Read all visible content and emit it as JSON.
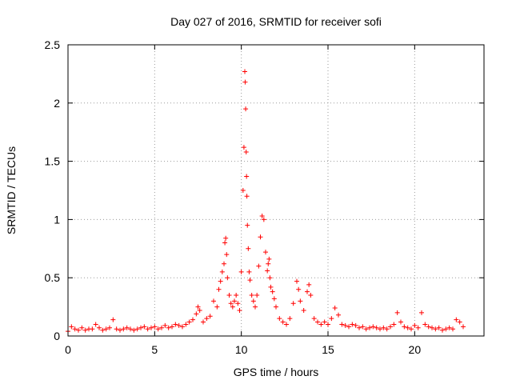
{
  "chart_data": {
    "type": "scatter",
    "title": "Day 027 of 2016, SRMTID for receiver sofi",
    "xlabel": "GPS time / hours",
    "ylabel": "SRMTID / TECUs",
    "xlim": [
      0,
      24
    ],
    "ylim": [
      0,
      2.5
    ],
    "xticks": [
      0,
      5,
      10,
      15,
      20
    ],
    "yticks": [
      0,
      0.5,
      1,
      1.5,
      2,
      2.5
    ],
    "ytick_labels": [
      "0",
      "0.5",
      "1",
      "1.5",
      "2",
      "2.5"
    ],
    "grid": true,
    "marker": "+",
    "color": "#ff0000",
    "series": [
      {
        "name": "SRMTID",
        "x": [
          0.0,
          0.2,
          0.4,
          0.6,
          0.8,
          1.0,
          1.2,
          1.4,
          1.6,
          1.8,
          2.0,
          2.2,
          2.4,
          2.6,
          2.8,
          3.0,
          3.2,
          3.4,
          3.6,
          3.8,
          4.0,
          4.2,
          4.4,
          4.6,
          4.8,
          5.0,
          5.2,
          5.4,
          5.6,
          5.8,
          6.0,
          6.2,
          6.4,
          6.6,
          6.8,
          7.0,
          7.2,
          7.4,
          7.5,
          7.6,
          7.8,
          8.0,
          8.2,
          8.4,
          8.6,
          8.7,
          8.8,
          8.9,
          9.0,
          9.05,
          9.1,
          9.15,
          9.2,
          9.3,
          9.4,
          9.5,
          9.6,
          9.7,
          9.8,
          9.9,
          10.0,
          10.1,
          10.15,
          10.2,
          10.22,
          10.25,
          10.28,
          10.3,
          10.32,
          10.35,
          10.4,
          10.45,
          10.5,
          10.6,
          10.7,
          10.8,
          10.9,
          11.0,
          11.1,
          11.2,
          11.3,
          11.4,
          11.5,
          11.55,
          11.6,
          11.65,
          11.7,
          11.8,
          11.9,
          12.0,
          12.2,
          12.4,
          12.6,
          12.8,
          13.0,
          13.2,
          13.3,
          13.4,
          13.6,
          13.8,
          13.9,
          14.0,
          14.2,
          14.4,
          14.6,
          14.8,
          15.0,
          15.2,
          15.4,
          15.6,
          15.8,
          16.0,
          16.2,
          16.4,
          16.6,
          16.8,
          17.0,
          17.2,
          17.4,
          17.6,
          17.8,
          18.0,
          18.2,
          18.4,
          18.6,
          18.8,
          19.0,
          19.2,
          19.4,
          19.6,
          19.8,
          20.0,
          20.2,
          20.4,
          20.6,
          20.8,
          21.0,
          21.2,
          21.4,
          21.6,
          21.8,
          22.0,
          22.2,
          22.4,
          22.6,
          22.8
        ],
        "y": [
          0.04,
          0.08,
          0.06,
          0.05,
          0.07,
          0.05,
          0.06,
          0.06,
          0.1,
          0.07,
          0.05,
          0.06,
          0.07,
          0.14,
          0.06,
          0.05,
          0.06,
          0.07,
          0.06,
          0.05,
          0.06,
          0.07,
          0.08,
          0.06,
          0.07,
          0.08,
          0.06,
          0.07,
          0.09,
          0.07,
          0.08,
          0.1,
          0.09,
          0.08,
          0.1,
          0.12,
          0.14,
          0.19,
          0.25,
          0.22,
          0.12,
          0.15,
          0.17,
          0.3,
          0.25,
          0.4,
          0.47,
          0.55,
          0.62,
          0.8,
          0.84,
          0.7,
          0.5,
          0.35,
          0.28,
          0.25,
          0.3,
          0.35,
          0.28,
          0.22,
          0.55,
          1.25,
          1.62,
          2.27,
          2.18,
          1.95,
          1.58,
          1.37,
          1.2,
          0.95,
          0.75,
          0.55,
          0.48,
          0.35,
          0.3,
          0.25,
          0.35,
          0.6,
          0.85,
          1.03,
          1.0,
          0.72,
          0.56,
          0.62,
          0.66,
          0.5,
          0.42,
          0.38,
          0.32,
          0.25,
          0.15,
          0.12,
          0.1,
          0.15,
          0.28,
          0.47,
          0.4,
          0.3,
          0.22,
          0.38,
          0.44,
          0.35,
          0.15,
          0.12,
          0.1,
          0.12,
          0.1,
          0.15,
          0.24,
          0.18,
          0.1,
          0.09,
          0.08,
          0.1,
          0.09,
          0.07,
          0.08,
          0.06,
          0.07,
          0.08,
          0.07,
          0.06,
          0.07,
          0.06,
          0.08,
          0.1,
          0.2,
          0.12,
          0.08,
          0.07,
          0.06,
          0.09,
          0.07,
          0.2,
          0.1,
          0.08,
          0.07,
          0.06,
          0.07,
          0.05,
          0.06,
          0.07,
          0.06,
          0.14,
          0.12,
          0.08
        ]
      }
    ]
  }
}
